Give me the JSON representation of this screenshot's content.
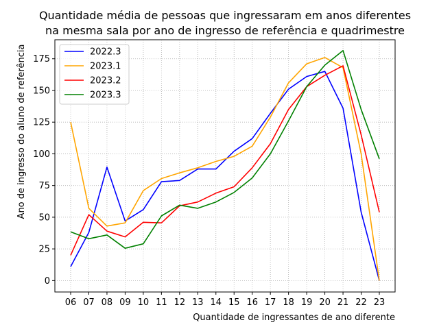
{
  "chart_data": {
    "type": "line",
    "title": [
      "Quantidade média de pessoas que ingressaram em anos diferentes",
      "na mesma sala por ano de ingresso de referência e quadrimestre"
    ],
    "xlabel": "Quantidade de ingressantes de ano diferente",
    "ylabel": "Ano de ingresso do aluno de referência",
    "categories": [
      "06",
      "07",
      "08",
      "09",
      "10",
      "11",
      "12",
      "13",
      "14",
      "15",
      "16",
      "17",
      "18",
      "19",
      "20",
      "21",
      "22",
      "23"
    ],
    "ylim": [
      -9,
      190
    ],
    "yticks": [
      0,
      25,
      50,
      75,
      100,
      125,
      150,
      175
    ],
    "grid": true,
    "legend_position": "top-left",
    "series": [
      {
        "name": "2022.3",
        "color": "#0000ff",
        "values": [
          11,
          38,
          89.5,
          47,
          56,
          78,
          79,
          88,
          88,
          102,
          112,
          132,
          151,
          161,
          165,
          136,
          54,
          0
        ]
      },
      {
        "name": "2023.1",
        "color": "#ffa500",
        "values": [
          125,
          57,
          43,
          45.5,
          71,
          80.5,
          85,
          89,
          94,
          98,
          106,
          129,
          156,
          171,
          176,
          168,
          100,
          0
        ]
      },
      {
        "name": "2023.2",
        "color": "#ff0000",
        "values": [
          20,
          52,
          39,
          34.5,
          46,
          45.5,
          59,
          62,
          69,
          74,
          89,
          108,
          135,
          153,
          162,
          169.5,
          115,
          54
        ]
      },
      {
        "name": "2023.3",
        "color": "#008000",
        "values": [
          38.5,
          33,
          36,
          25.5,
          29,
          51,
          59.5,
          57,
          62,
          69.5,
          81,
          100,
          126,
          153,
          170,
          181.5,
          135,
          96
        ]
      }
    ]
  }
}
